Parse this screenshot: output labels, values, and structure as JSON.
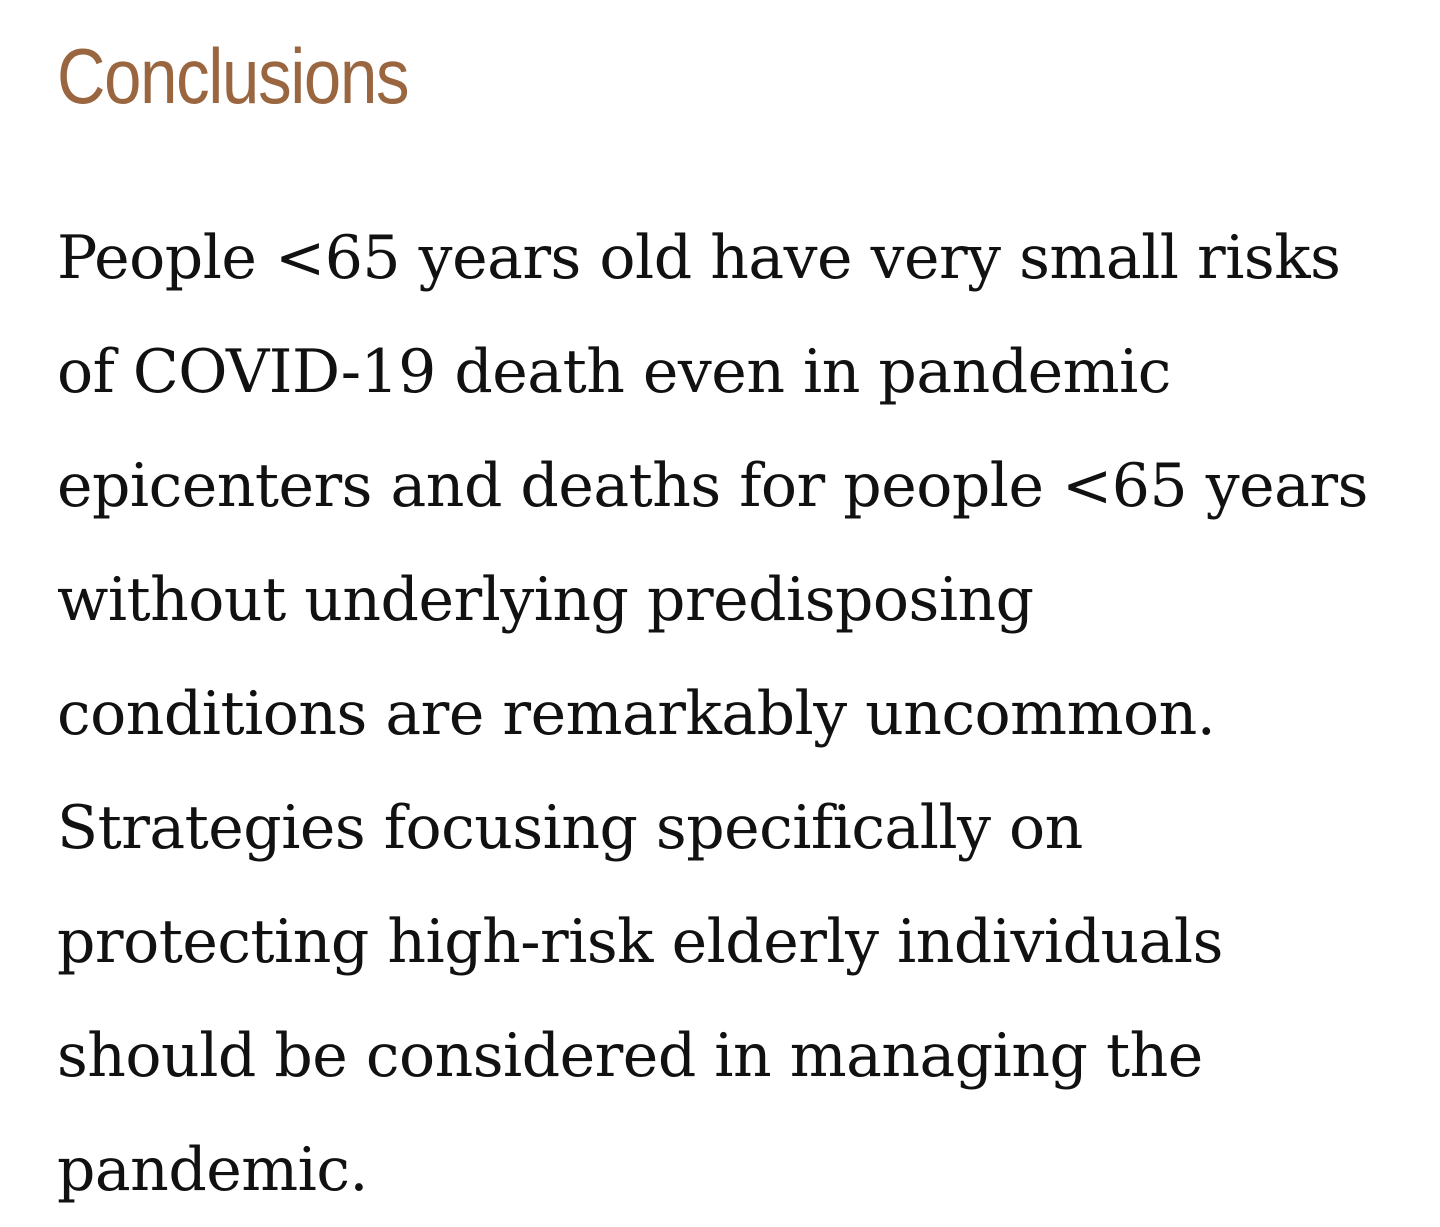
{
  "section": {
    "heading": "Conclusions",
    "lines": [
      "People <65 years old have very small risks",
      "of COVID-19 death even in pandemic",
      "epicenters and deaths for people <65 years",
      "without underlying predisposing",
      "conditions are remarkably uncommon.",
      "Strategies focusing specifically on",
      "protecting high-risk elderly individuals",
      "should be considered in managing the",
      "pandemic."
    ]
  },
  "colors": {
    "heading": "#9a6640",
    "text": "#111111",
    "background": "#ffffff"
  }
}
